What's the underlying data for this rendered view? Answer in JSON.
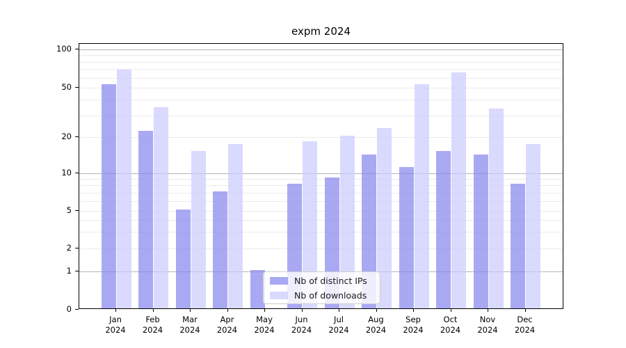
{
  "title": "expm 2024",
  "chart_data": {
    "type": "bar",
    "title": "expm 2024",
    "yscale": "symlog",
    "ylim": [
      0,
      110
    ],
    "yticks": [
      0,
      1,
      2,
      5,
      10,
      20,
      50,
      100
    ],
    "grid": {
      "minor_values": [
        2,
        3,
        4,
        5,
        6,
        7,
        8,
        9,
        20,
        30,
        40,
        50,
        60,
        70,
        80,
        90
      ],
      "major_values": [
        1,
        10,
        100
      ],
      "minor_color": "#ebebeb",
      "major_color": "#b4b4b4"
    },
    "categories": [
      "Jan",
      "Feb",
      "Mar",
      "Apr",
      "May",
      "Jun",
      "Jul",
      "Aug",
      "Sep",
      "Oct",
      "Nov",
      "Dec"
    ],
    "x_tick_labels": [
      {
        "month": "Jan",
        "year": "2024"
      },
      {
        "month": "Feb",
        "year": "2024"
      },
      {
        "month": "Mar",
        "year": "2024"
      },
      {
        "month": "Apr",
        "year": "2024"
      },
      {
        "month": "May",
        "year": "2024"
      },
      {
        "month": "Jun",
        "year": "2024"
      },
      {
        "month": "Jul",
        "year": "2024"
      },
      {
        "month": "Aug",
        "year": "2024"
      },
      {
        "month": "Sep",
        "year": "2024"
      },
      {
        "month": "Oct",
        "year": "2024"
      },
      {
        "month": "Nov",
        "year": "2024"
      },
      {
        "month": "Dec",
        "year": "2024"
      }
    ],
    "series": [
      {
        "name": "Nb of distinct IPs",
        "key": "distinct-ips",
        "color": "#8888ee",
        "alpha": 0.72,
        "values": [
          52,
          22,
          5,
          7,
          1,
          8,
          9,
          14,
          11,
          15,
          14,
          8
        ]
      },
      {
        "name": "Nb of downloads",
        "key": "downloads",
        "color": "#ccccff",
        "alpha": 0.72,
        "values": [
          68,
          34,
          15,
          17,
          0,
          18,
          20,
          23,
          52,
          64,
          33,
          17
        ]
      }
    ],
    "legend_position": "lower-center-inside"
  }
}
